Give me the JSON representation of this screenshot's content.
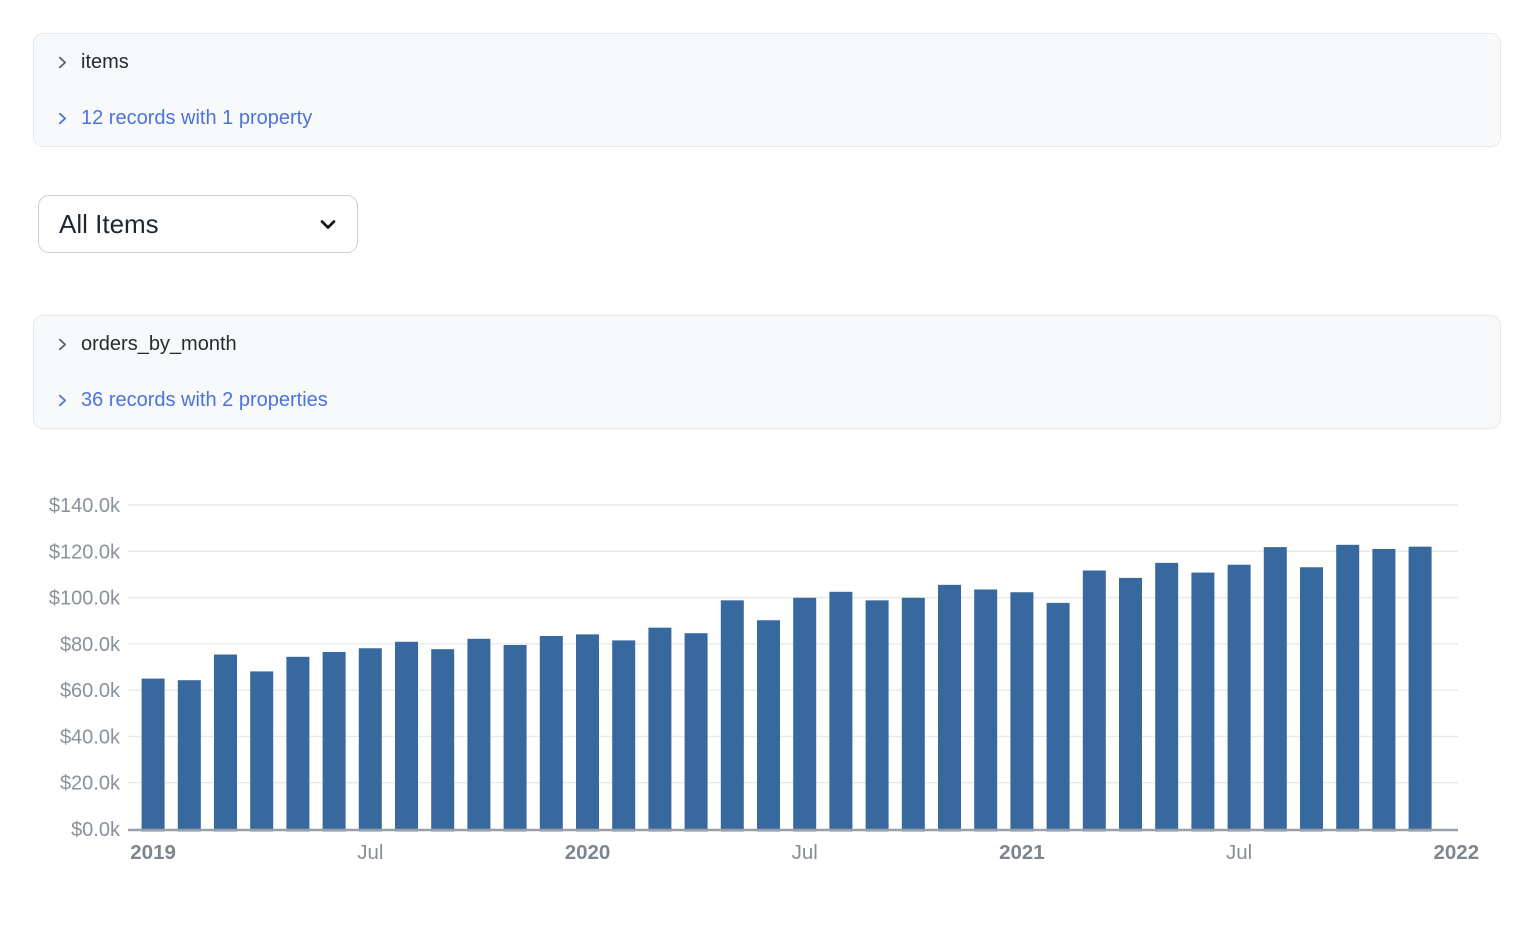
{
  "panels": [
    {
      "title": "items",
      "summary": "12 records with 1 property"
    },
    {
      "title": "orders_by_month",
      "summary": "36 records with 2 properties"
    }
  ],
  "dropdown": {
    "value": "All Items"
  },
  "colors": {
    "link_blue": "#4A73E0",
    "panel_background": "#F8F9FA",
    "panel_border": "#E6E9EC",
    "bar_blue": "#37699E",
    "axis_gray": "#9AA0A8",
    "grid_gray": "#E7E9ED"
  },
  "chart_data": {
    "type": "bar",
    "title": "",
    "xlabel": "",
    "ylabel": "",
    "ylim": [
      0,
      140
    ],
    "ytick_step": 20,
    "ytick_labels": [
      "$0.0k",
      "$20.0k",
      "$40.0k",
      "$60.0k",
      "$80.0k",
      "$100.0k",
      "$120.0k",
      "$140.0k"
    ],
    "grid": true,
    "legend": "none",
    "bar_color": "#37699E",
    "value_unit": "USD thousands",
    "categories": [
      "2019-01",
      "2019-02",
      "2019-03",
      "2019-04",
      "2019-05",
      "2019-06",
      "2019-07",
      "2019-08",
      "2019-09",
      "2019-10",
      "2019-11",
      "2019-12",
      "2020-01",
      "2020-02",
      "2020-03",
      "2020-04",
      "2020-05",
      "2020-06",
      "2020-07",
      "2020-08",
      "2020-09",
      "2020-10",
      "2020-11",
      "2020-12",
      "2021-01",
      "2021-02",
      "2021-03",
      "2021-04",
      "2021-05",
      "2021-06",
      "2021-07",
      "2021-08",
      "2021-09",
      "2021-10",
      "2021-11",
      "2021-12"
    ],
    "values": [
      65.0,
      64.3,
      75.4,
      68.1,
      74.4,
      76.5,
      78.1,
      80.9,
      77.7,
      82.2,
      79.5,
      83.4,
      84.1,
      81.5,
      87.0,
      84.6,
      98.8,
      90.2,
      99.9,
      102.5,
      98.8,
      99.9,
      105.5,
      103.5,
      102.3,
      97.7,
      111.7,
      108.5,
      115.0,
      110.8,
      114.2,
      121.8,
      113.1,
      122.8,
      121.0,
      122.0
    ],
    "xticks": [
      {
        "slot": 0,
        "label": "2019",
        "bold": true
      },
      {
        "slot": 6,
        "label": "Jul",
        "bold": false
      },
      {
        "slot": 12,
        "label": "2020",
        "bold": true
      },
      {
        "slot": 18,
        "label": "Jul",
        "bold": false
      },
      {
        "slot": 24,
        "label": "2021",
        "bold": true
      },
      {
        "slot": 30,
        "label": "Jul",
        "bold": false
      },
      {
        "slot": 36,
        "label": "2022",
        "bold": true
      }
    ]
  }
}
